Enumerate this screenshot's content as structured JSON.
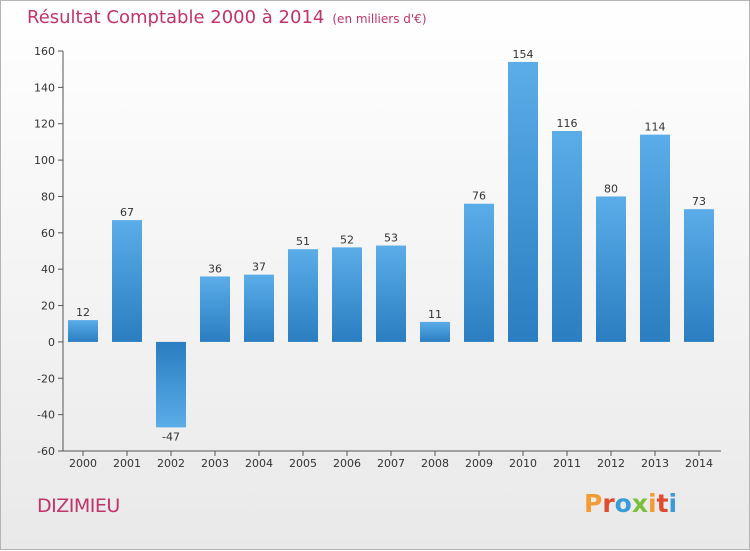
{
  "header": {
    "title": "Résultat Comptable 2000 à 2014",
    "subtitle": "(en milliers d'€)"
  },
  "footer": {
    "town": "DIZIMIEU",
    "brand": "Proxiti"
  },
  "colors": {
    "title": "#c0336b",
    "bar_light": "#5aade8",
    "bar_dark": "#2a7ec1",
    "brand_letters": [
      "#f39c34",
      "#e04a2e",
      "#3a9bd9",
      "#7bbf3a",
      "#f39c34",
      "#e04a2e",
      "#3a9bd9"
    ]
  },
  "chart_data": {
    "type": "bar",
    "categories": [
      "2000",
      "2001",
      "2002",
      "2003",
      "2004",
      "2005",
      "2006",
      "2007",
      "2008",
      "2009",
      "2010",
      "2011",
      "2012",
      "2013",
      "2014"
    ],
    "values": [
      12,
      67,
      -47,
      36,
      37,
      51,
      52,
      53,
      11,
      76,
      154,
      116,
      80,
      114,
      73
    ],
    "ylim": [
      -60,
      160
    ],
    "yticks": [
      -60,
      -40,
      -20,
      0,
      20,
      40,
      60,
      80,
      100,
      120,
      140,
      160
    ],
    "grid": false,
    "legend": "none"
  }
}
